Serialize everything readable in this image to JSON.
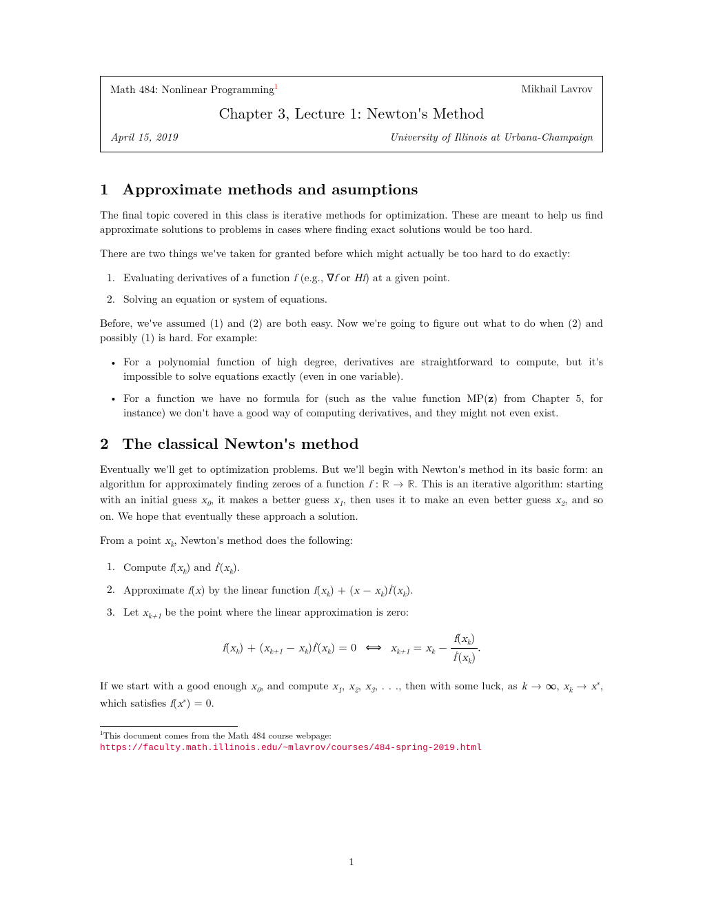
{
  "header": {
    "course": "Math 484: Nonlinear Programming",
    "footmark": "1",
    "author": "Mikhail Lavrov",
    "title": "Chapter 3, Lecture 1: Newton's Method",
    "date": "April 15, 2019",
    "institution": "University of Illinois at Urbana-Champaign"
  },
  "sec1": {
    "num": "1",
    "title": "Approximate methods and asumptions",
    "p1": "The final topic covered in this class is iterative methods for optimization. These are meant to help us find approximate solutions to problems in cases where finding exact solutions would be too hard.",
    "p2": "There are two things we've taken for granted before which might actually be too hard to do exactly:",
    "li1_a": "Evaluating derivatives of a function ",
    "li1_b": " (e.g., ∇",
    "li1_c": " or ",
    "li1_d": ") at a given point.",
    "li2": "Solving an equation or system of equations.",
    "p3": "Before, we've assumed (1) and (2) are both easy. Now we're going to figure out what to do when (2) and possibly (1) is hard. For example:",
    "b1": "For a polynomial function of high degree, derivatives are straightforward to compute, but it's impossible to solve equations exactly (even in one variable).",
    "b2_a": "For a function we have no formula for (such as the value function MP(",
    "b2_b": ") from Chapter 5, for instance) we don't have a good way of computing derivatives, and they might not even exist."
  },
  "sec2": {
    "num": "2",
    "title": "The classical Newton's method",
    "p1_a": "Eventually we'll get to optimization problems. But we'll begin with Newton's method in its basic form: an algorithm for approximately finding zeroes of a function ",
    "p1_b": ". This is an iterative algorithm: starting with an initial guess ",
    "p1_c": ", it makes a better guess ",
    "p1_d": ", then uses it to make an even better guess ",
    "p1_e": ", and so on. We hope that eventually these approach a solution.",
    "p2_a": "From a point ",
    "p2_b": ", Newton's method does the following:",
    "s1_a": "Compute ",
    "s1_b": " and ",
    "s2_a": "Approximate ",
    "s2_b": " by the linear function ",
    "s3_a": "Let ",
    "s3_b": " be the point where the linear approximation is zero:",
    "p3_a": "If we start with a good enough ",
    "p3_b": ", and compute ",
    "p3_c": ", then with some luck, as ",
    "p3_d": ", which satisfies "
  },
  "footnote": {
    "mark": "1",
    "text": "This document comes from the Math 484 course webpage: ",
    "url": "https://faculty.math.illinois.edu/~mlavrov/courses/484-spring-2019.html"
  },
  "page_number": "1",
  "colors": {
    "link": "#cc0033",
    "text": "#000000",
    "bg": "#ffffff"
  }
}
